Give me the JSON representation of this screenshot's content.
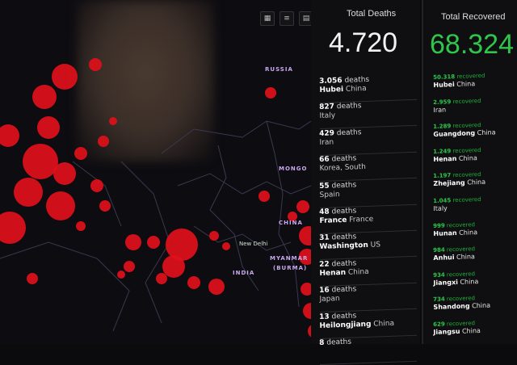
{
  "map": {
    "labels": [
      "RUSSIA",
      "MONGO",
      "CHINA",
      "INDIA",
      "MYANMAR",
      "(BURMA)"
    ],
    "cities": [
      "New Delhi"
    ],
    "marker_color": "#e0101a"
  },
  "toolbar": {
    "icons": [
      "grid-icon",
      "list-icon",
      "layers-icon"
    ]
  },
  "total_deaths": {
    "title": "Total Deaths",
    "value": "4.720",
    "rows": [
      {
        "count": "3.056",
        "unit": "deaths",
        "region": "Hubei",
        "country": "China"
      },
      {
        "count": "827",
        "unit": "deaths",
        "region": "",
        "country": "Italy"
      },
      {
        "count": "429",
        "unit": "deaths",
        "region": "",
        "country": "Iran"
      },
      {
        "count": "66",
        "unit": "deaths",
        "region": "",
        "country": "Korea, South"
      },
      {
        "count": "55",
        "unit": "deaths",
        "region": "",
        "country": "Spain"
      },
      {
        "count": "48",
        "unit": "deaths",
        "region": "France",
        "country": "France"
      },
      {
        "count": "31",
        "unit": "deaths",
        "region": "Washington",
        "country": "US"
      },
      {
        "count": "22",
        "unit": "deaths",
        "region": "Henan",
        "country": "China"
      },
      {
        "count": "16",
        "unit": "deaths",
        "region": "",
        "country": "Japan"
      },
      {
        "count": "13",
        "unit": "deaths",
        "region": "Heilongjiang",
        "country": "China"
      },
      {
        "count": "8",
        "unit": "deaths",
        "region": "",
        "country": ""
      }
    ]
  },
  "total_recovered": {
    "title": "Total Recovered",
    "value": "68.324",
    "color": "#2fc64a",
    "rows": [
      {
        "count": "50.318",
        "unit": "recovered",
        "region": "Hubei",
        "country": "China"
      },
      {
        "count": "2.959",
        "unit": "recovered",
        "region": "",
        "country": "Iran"
      },
      {
        "count": "1.289",
        "unit": "recovered",
        "region": "Guangdong",
        "country": "China"
      },
      {
        "count": "1.249",
        "unit": "recovered",
        "region": "Henan",
        "country": "China"
      },
      {
        "count": "1.197",
        "unit": "recovered",
        "region": "Zhejiang",
        "country": "China"
      },
      {
        "count": "1.045",
        "unit": "recovered",
        "region": "",
        "country": "Italy"
      },
      {
        "count": "999",
        "unit": "recovered",
        "region": "Hunan",
        "country": "China"
      },
      {
        "count": "984",
        "unit": "recovered",
        "region": "Anhui",
        "country": "China"
      },
      {
        "count": "934",
        "unit": "recovered",
        "region": "Jiangxi",
        "country": "China"
      },
      {
        "count": "734",
        "unit": "recovered",
        "region": "Shandong",
        "country": "China"
      },
      {
        "count": "629",
        "unit": "recovered",
        "region": "Jiangsu",
        "country": "China"
      }
    ]
  }
}
